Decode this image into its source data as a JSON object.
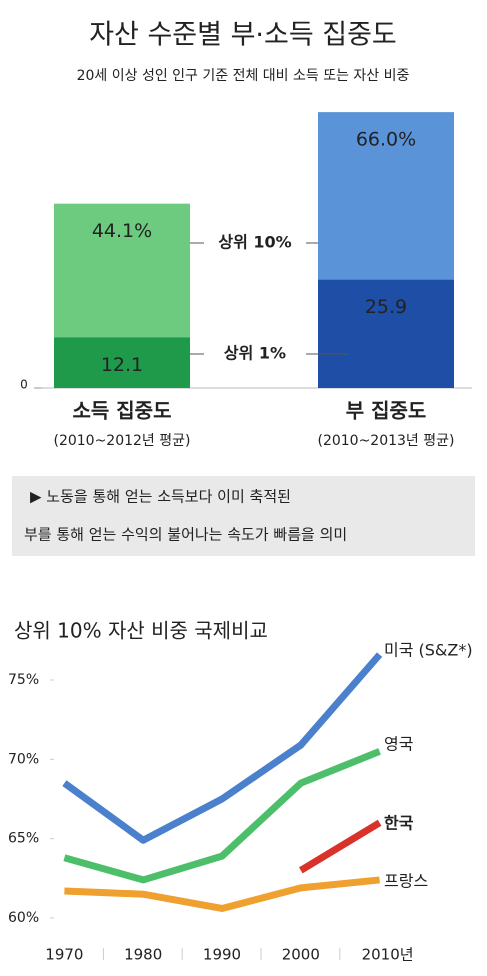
{
  "chart_data": [
    {
      "type": "bar",
      "title": "자산 수준별 부·소득 집중도",
      "subtitle": "20세 이상 성인 인구 기준 전체 대비 소득 또는 자산 비중",
      "categories": [
        "소득 집중도",
        "부 집중도"
      ],
      "category_notes": [
        "(2010~2012년 평균)",
        "(2010~2013년 평균)"
      ],
      "series": [
        {
          "name": "상위 10%",
          "colors": [
            "#6ccb7e",
            "#5b93d8"
          ],
          "values": [
            44.1,
            66.0
          ],
          "value_labels": [
            "44.1%",
            "66.0%"
          ]
        },
        {
          "name": "상위 1%",
          "colors": [
            "#1f9a4a",
            "#1f4ea6"
          ],
          "values": [
            12.1,
            25.9
          ]
        }
      ],
      "ylim": [
        0,
        70
      ],
      "yticks": [
        0
      ],
      "annotations": [
        "▶ 노동을 통해 얻는 소득보다 이미 축적된",
        "부를 통해 얻는 수익의 불어나는 속도가 빠름을 의미"
      ]
    },
    {
      "type": "line",
      "title": "상위 10% 자산 비중 국제비교",
      "x": [
        1970,
        1980,
        1990,
        2000,
        2010
      ],
      "series": [
        {
          "name": "미국 (S&Z*)",
          "color": "#4a80cc",
          "values": [
            68.5,
            64.9,
            67.5,
            70.9,
            76.6
          ]
        },
        {
          "name": "영국",
          "color": "#4dbf6a",
          "values": [
            63.8,
            62.4,
            63.9,
            68.5,
            70.5
          ]
        },
        {
          "name": "한국",
          "color": "#d8322a",
          "values": [
            null,
            null,
            null,
            63.0,
            66.0
          ]
        },
        {
          "name": "프랑스",
          "color": "#f0a02e",
          "values": [
            61.7,
            61.5,
            60.6,
            61.9,
            62.4
          ]
        }
      ],
      "xlim": [
        1965,
        2015
      ],
      "xticks": [
        1970,
        1980,
        1990,
        2000,
        {
          "value": 2010,
          "label": "2010년"
        }
      ],
      "ylim": [
        59,
        77
      ],
      "yticks": [
        {
          "value": 60,
          "label": "60%"
        },
        {
          "value": 65,
          "label": "65%"
        },
        {
          "value": 70,
          "label": "70%"
        },
        {
          "value": 75,
          "label": "75%"
        }
      ]
    }
  ]
}
